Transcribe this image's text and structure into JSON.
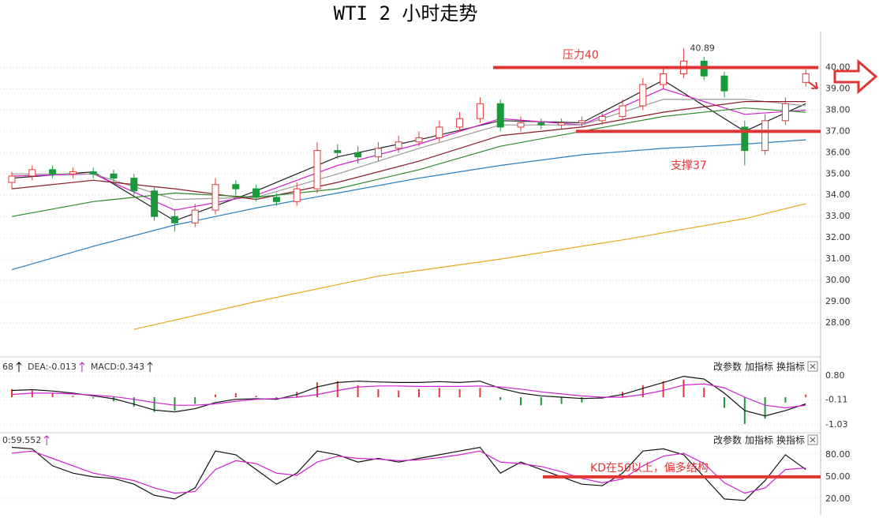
{
  "title": "WTI 2 小时走势",
  "chart_data": [
    {
      "type": "candlestick",
      "ylim": [
        26.85,
        41.5
      ],
      "yticks": [
        {
          "value": 28,
          "label": "28.00"
        },
        {
          "value": 29,
          "label": "29.00"
        },
        {
          "value": 30,
          "label": "30.00"
        },
        {
          "value": 31,
          "label": "31.00"
        },
        {
          "value": 32,
          "label": "32.00"
        },
        {
          "value": 33,
          "label": "33.00"
        },
        {
          "value": 34,
          "label": "34.00"
        },
        {
          "value": 35,
          "label": "35.00"
        },
        {
          "value": 36,
          "label": "36.00"
        },
        {
          "value": 37,
          "label": "37.00"
        },
        {
          "value": 38,
          "label": "38.00"
        },
        {
          "value": 39,
          "label": "39.00"
        },
        {
          "value": 40,
          "label": "40.00"
        }
      ],
      "grid": true,
      "up_color": "#e03a3a",
      "down_color": "#1a9a3a",
      "candles": {
        "open": [
          34.6,
          34.9,
          35.2,
          35.0,
          35.1,
          35.0,
          34.8,
          34.2,
          33.0,
          32.7,
          33.3,
          34.5,
          34.3,
          33.9,
          33.7,
          34.3,
          36.1,
          36.0,
          35.8,
          36.2,
          36.5,
          36.7,
          37.2,
          37.6,
          38.3,
          37.2,
          37.4,
          37.3,
          37.4,
          37.5,
          37.7,
          38.2,
          39.2,
          39.7,
          40.3,
          39.6,
          37.2,
          36.1,
          37.5,
          39.3
        ],
        "high": [
          35.1,
          35.4,
          35.4,
          35.3,
          35.3,
          35.2,
          35.0,
          34.4,
          33.3,
          33.6,
          34.8,
          34.7,
          34.5,
          34.1,
          34.6,
          36.5,
          36.4,
          36.3,
          36.5,
          36.8,
          37.0,
          37.5,
          37.9,
          38.6,
          38.5,
          37.7,
          37.6,
          37.6,
          37.7,
          37.9,
          38.5,
          39.5,
          40.0,
          40.89,
          40.5,
          39.8,
          37.5,
          37.8,
          38.6,
          39.9
        ],
        "low": [
          34.3,
          34.7,
          34.8,
          34.8,
          34.8,
          34.5,
          34.0,
          32.8,
          32.3,
          32.5,
          33.1,
          34.0,
          33.7,
          33.5,
          33.5,
          34.1,
          35.7,
          35.5,
          35.6,
          36.0,
          36.3,
          36.5,
          37.0,
          37.4,
          37.0,
          37.0,
          37.1,
          37.1,
          37.2,
          37.3,
          37.5,
          38.0,
          39.0,
          39.5,
          39.4,
          38.6,
          35.4,
          35.9,
          37.3,
          39.1
        ],
        "close": [
          34.9,
          35.2,
          35.0,
          35.1,
          35.0,
          34.8,
          34.2,
          33.0,
          32.7,
          33.3,
          34.5,
          34.3,
          33.9,
          33.7,
          34.3,
          36.1,
          36.0,
          35.8,
          36.2,
          36.5,
          36.7,
          37.2,
          37.6,
          38.3,
          37.2,
          37.4,
          37.3,
          37.4,
          37.5,
          37.7,
          38.2,
          39.2,
          39.7,
          40.3,
          39.6,
          38.9,
          36.1,
          37.5,
          38.3,
          39.7
        ]
      },
      "peak_index": 33,
      "series": [
        {
          "color": "#222222",
          "x": [
            0,
            4,
            8,
            12,
            16,
            20,
            24,
            28,
            32,
            36,
            39
          ],
          "values": [
            34.8,
            35.1,
            32.8,
            34.2,
            35.8,
            36.6,
            37.5,
            37.4,
            39.4,
            37.0,
            38.3
          ]
        },
        {
          "color": "#d020d0",
          "x": [
            0,
            4,
            8,
            12,
            16,
            20,
            24,
            28,
            32,
            36,
            39
          ],
          "values": [
            34.9,
            35.0,
            33.3,
            34.0,
            35.4,
            36.4,
            37.6,
            37.3,
            39.0,
            37.8,
            38.0
          ]
        },
        {
          "color": "#999999",
          "x": [
            0,
            4,
            8,
            12,
            16,
            20,
            24,
            28,
            32,
            36,
            39
          ],
          "values": [
            35.0,
            35.0,
            33.8,
            33.9,
            35.0,
            36.2,
            37.3,
            37.3,
            38.5,
            38.5,
            38.2
          ]
        },
        {
          "color": "#8b1a2a",
          "x": [
            0,
            4,
            8,
            12,
            16,
            20,
            24,
            28,
            32,
            36,
            39
          ],
          "values": [
            34.3,
            34.7,
            34.3,
            33.8,
            34.6,
            35.6,
            36.8,
            37.2,
            37.9,
            38.4,
            38.4
          ]
        },
        {
          "color": "#2a8a2a",
          "x": [
            0,
            4,
            8,
            12,
            16,
            20,
            24,
            28,
            32,
            36,
            39
          ],
          "values": [
            33.0,
            33.7,
            34.1,
            33.9,
            34.3,
            35.2,
            36.3,
            37.0,
            37.7,
            38.1,
            37.9
          ]
        },
        {
          "color": "#2a7fc0",
          "x": [
            0,
            4,
            8,
            12,
            16,
            20,
            24,
            28,
            32,
            36,
            39
          ],
          "values": [
            30.5,
            31.6,
            32.6,
            33.4,
            34.1,
            34.8,
            35.4,
            35.9,
            36.2,
            36.4,
            36.6
          ]
        },
        {
          "color": "#e8a820",
          "x": [
            6,
            12,
            18,
            24,
            30,
            36,
            39
          ],
          "values": [
            27.7,
            29.0,
            30.2,
            31.0,
            31.9,
            32.9,
            33.6
          ]
        }
      ],
      "hlines": [
        {
          "value": 40,
          "label": "压力40"
        },
        {
          "value": 37,
          "label": "支撑37"
        }
      ]
    },
    {
      "type": "macd",
      "ylim": [
        -1.24,
        1.21
      ],
      "yticks": [
        {
          "value": 0.8,
          "label": "0.80"
        },
        {
          "value": -0.11,
          "label": "-0.11"
        },
        {
          "value": -1.03,
          "label": "-1.03"
        }
      ],
      "grid": true,
      "header": [
        {
          "text": "68",
          "color": "#000000"
        },
        {
          "text": "DEA:-0.013",
          "color": "#c020c0"
        },
        {
          "text": "MACD:0.343",
          "color": "#333333"
        }
      ],
      "buttons": [
        "改参数",
        "加指标",
        "换指标"
      ],
      "hist_up_color": "#e03a3a",
      "hist_down_color": "#1a9a3a",
      "histogram": [
        0.3,
        0.25,
        0.15,
        0.05,
        -0.05,
        -0.15,
        -0.35,
        -0.55,
        -0.5,
        -0.25,
        0.1,
        0.15,
        0.05,
        -0.05,
        0.2,
        0.55,
        0.6,
        0.45,
        0.3,
        0.25,
        0.3,
        0.35,
        0.3,
        0.35,
        -0.1,
        -0.3,
        -0.3,
        -0.25,
        -0.2,
        -0.05,
        0.2,
        0.45,
        0.6,
        0.65,
        0.35,
        -0.4,
        -1.0,
        -0.8,
        -0.2,
        0.1
      ],
      "series": [
        {
          "color": "#111111",
          "values": [
            0.25,
            0.28,
            0.23,
            0.15,
            0.05,
            -0.06,
            -0.26,
            -0.48,
            -0.55,
            -0.43,
            -0.2,
            -0.08,
            -0.06,
            -0.08,
            0.1,
            0.38,
            0.55,
            0.6,
            0.57,
            0.55,
            0.55,
            0.58,
            0.55,
            0.6,
            0.33,
            0.15,
            0.05,
            0.0,
            -0.05,
            -0.03,
            0.1,
            0.33,
            0.55,
            0.78,
            0.68,
            0.15,
            -0.5,
            -0.7,
            -0.5,
            -0.25
          ]
        },
        {
          "color": "#d020d0",
          "values": [
            0.1,
            0.15,
            0.15,
            0.12,
            0.08,
            0.02,
            -0.08,
            -0.2,
            -0.3,
            -0.3,
            -0.25,
            -0.15,
            -0.08,
            -0.05,
            0.0,
            0.1,
            0.25,
            0.38,
            0.42,
            0.42,
            0.4,
            0.4,
            0.4,
            0.42,
            0.38,
            0.3,
            0.2,
            0.12,
            0.05,
            0.0,
            0.0,
            0.1,
            0.25,
            0.45,
            0.5,
            0.35,
            0.0,
            -0.3,
            -0.4,
            -0.3
          ]
        }
      ]
    },
    {
      "type": "line",
      "ylim": [
        6,
        97
      ],
      "yticks": [
        {
          "value": 80,
          "label": "80.00"
        },
        {
          "value": 50,
          "label": "50.00"
        },
        {
          "value": 20,
          "label": "20.00"
        }
      ],
      "grid": true,
      "header": [
        {
          "text": "0:59.552",
          "color": "#c020c0"
        }
      ],
      "buttons": [
        "改参数",
        "加指标",
        "换指标"
      ],
      "series": [
        {
          "color": "#111111",
          "values": [
            90,
            88,
            65,
            55,
            50,
            48,
            40,
            25,
            20,
            35,
            85,
            80,
            60,
            40,
            55,
            85,
            80,
            70,
            75,
            70,
            75,
            80,
            85,
            90,
            55,
            70,
            60,
            50,
            40,
            38,
            55,
            85,
            88,
            80,
            50,
            20,
            18,
            45,
            80,
            60
          ]
        },
        {
          "color": "#d020d0",
          "values": [
            82,
            85,
            75,
            65,
            55,
            50,
            45,
            35,
            28,
            30,
            60,
            72,
            68,
            55,
            52,
            70,
            78,
            75,
            74,
            72,
            73,
            76,
            80,
            85,
            70,
            68,
            64,
            57,
            48,
            42,
            47,
            65,
            78,
            82,
            68,
            42,
            28,
            35,
            60,
            62
          ]
        }
      ],
      "hlines": [
        {
          "value": 50,
          "label": "KD在50以上，偏多结构"
        }
      ]
    }
  ]
}
